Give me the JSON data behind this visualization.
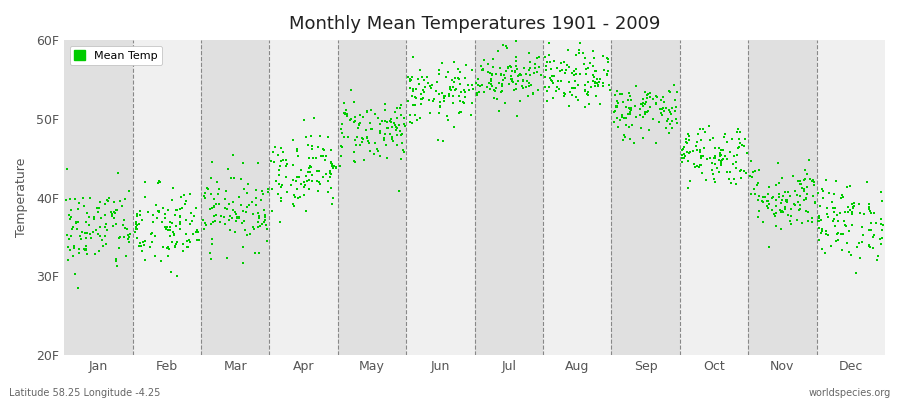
{
  "title": "Monthly Mean Temperatures 1901 - 2009",
  "ylabel": "Temperature",
  "xlabel": "",
  "footer_left": "Latitude 58.25 Longitude -4.25",
  "footer_right": "worldspecies.org",
  "legend_label": "Mean Temp",
  "months": [
    "Jan",
    "Feb",
    "Mar",
    "Apr",
    "May",
    "Jun",
    "Jul",
    "Aug",
    "Sep",
    "Oct",
    "Nov",
    "Dec"
  ],
  "month_centers": [
    1,
    2,
    3,
    4,
    5,
    6,
    7,
    8,
    9,
    10,
    11,
    12
  ],
  "ylim": [
    20,
    60
  ],
  "yticks": [
    20,
    30,
    40,
    50,
    60
  ],
  "ytick_labels": [
    "20F",
    "30F",
    "40F",
    "50F",
    "60F"
  ],
  "dot_color": "#00cc00",
  "dot_size": 3,
  "bg_color_light": "#f0f0f0",
  "bg_color_dark": "#e0e0e0",
  "n_years": 109,
  "mean_temps_F": [
    36.0,
    36.0,
    38.5,
    43.5,
    48.5,
    53.0,
    55.5,
    55.0,
    51.0,
    45.5,
    40.0,
    37.0
  ],
  "std_temps_F": [
    2.8,
    2.8,
    2.5,
    2.5,
    2.2,
    2.0,
    1.8,
    1.8,
    1.8,
    2.0,
    2.2,
    2.5
  ],
  "spread": 0.48,
  "seed": 42
}
